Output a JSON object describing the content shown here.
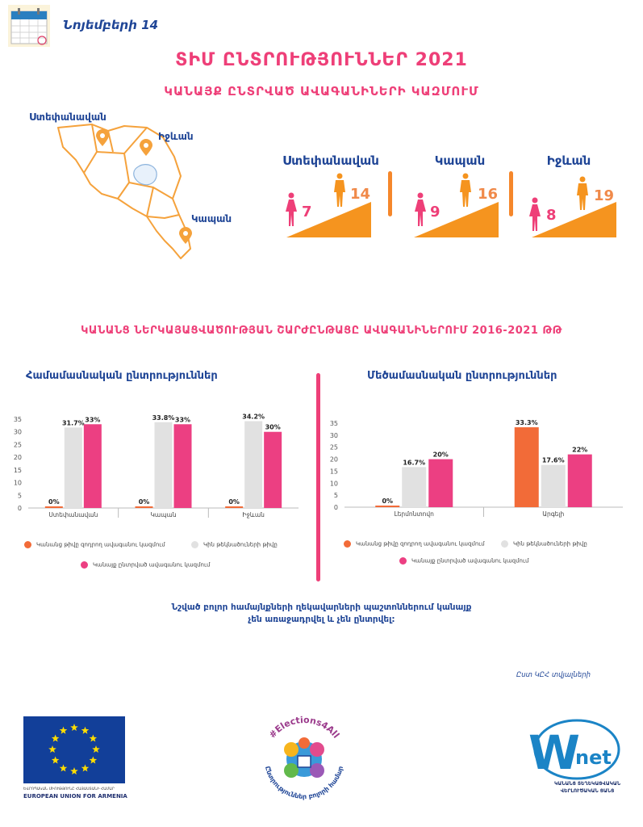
{
  "header": {
    "date": "Նոյեմբերի 14",
    "icon": "calendar-icon"
  },
  "title": "ՏԻՄ ԸՆՏՐՈՒԹՅՈՒՆՆԵՐ 2021",
  "subtitle": "ԿԱՆԱՅՔ ԸՆՏՐՎԱԾ ԱՎԱԳԱՆԻՆԵՐԻ ԿԱԶՄՈՒՄ",
  "map": {
    "labels": [
      "Ստեփանավան",
      "Իջևան",
      "Կապան"
    ]
  },
  "cities": [
    {
      "name": "Ստեփանավան",
      "women": "7",
      "men": "14"
    },
    {
      "name": "Կապան",
      "women": "9",
      "men": "16"
    },
    {
      "name": "Իջևան",
      "women": "8",
      "men": "19"
    }
  ],
  "section2_title": "ԿԱՆԱՆՑ ՆԵՐԿԱՅԱՑՎԱԾՈՒԹՅԱՆ ՇԱՐԺԸՆԹԱՑԸ ԱՎԱԳԱՆԻՆԵՐՈՒՄ 2016-2021 ԹԹ",
  "colors": {
    "series1": "#f26b38",
    "series2": "#e1e1e1",
    "series3": "#ec3f82",
    "accent": "#ee3f78",
    "navy": "#1f4596",
    "orange": "#f5872b"
  },
  "chart_data": [
    {
      "type": "bar",
      "title": "Համամասնական ընտրություններ",
      "categories": [
        "Ստեփանավան",
        "Կապան",
        "Իջևան"
      ],
      "ylim": [
        0,
        35
      ],
      "yticks": [
        0,
        5,
        10,
        15,
        20,
        25,
        30,
        35
      ],
      "legend_position": "bottom",
      "series": [
        {
          "name": "Կանանց թիվը զոդրող ավագանու կազմում",
          "values": [
            0,
            0,
            0
          ],
          "labels": [
            "0%",
            "0%",
            "0%"
          ]
        },
        {
          "name": "Կին թեկնածուների թիվը",
          "values": [
            31.7,
            33.8,
            34.2
          ],
          "labels": [
            "31.7%",
            "33.8%",
            "34.2%"
          ]
        },
        {
          "name": "Կանայք ընտրված ավագանու կազմում",
          "values": [
            33,
            33,
            30
          ],
          "labels": [
            "33%",
            "33%",
            "30%"
          ]
        }
      ]
    },
    {
      "type": "bar",
      "title": "Մեծամասնական ընտրություններ",
      "categories": [
        "Լերմոնտովո",
        "Արգելի"
      ],
      "ylim": [
        0,
        35
      ],
      "yticks": [
        0,
        5,
        10,
        15,
        20,
        25,
        30,
        35
      ],
      "legend_position": "bottom",
      "series": [
        {
          "name": "Կանանց թիվը զոդրող ավագանու կազմում",
          "values": [
            0,
            33.3
          ],
          "labels": [
            "0%",
            "33.3%"
          ]
        },
        {
          "name": "Կին թեկնածուների թիվը",
          "values": [
            16.7,
            17.6
          ],
          "labels": [
            "16.7%",
            "17.6%"
          ]
        },
        {
          "name": "Կանայք ընտրված ավագանու կազմում",
          "values": [
            20,
            22
          ],
          "labels": [
            "20%",
            "22%"
          ]
        }
      ]
    }
  ],
  "note": [
    "Նշված բոլոր համայնքների ղեկավարների պաշտոններում կանայք",
    "չեն առաջադրվել և չեն ընտրվել:"
  ],
  "source": "Ըստ ԿԸՀ տվյալների",
  "footer": {
    "eu_line1": "ԵՎՐՈՊԱԿԱՆ ՄԻՈՒԹՅՈՒՆԸ ՀԱՅԱՍՏԱՆԻ ՀԱՄԱՐ",
    "eu_line2": "EUROPEAN UNION FOR ARMENIA",
    "elections_hashtag": "#Elections4All",
    "elections_slogan": "Ընտրություններ բոլորի համար",
    "wnet_logo": "Wnet",
    "wnet_line1": "ԿԱՆԱՆՑ ՏԵՂԵԿԱՑՎԱԿԱՆ",
    "wnet_line2": "ՎԵՐԼՈՒԾԱԿԱՆ ՑԱՆՑ"
  }
}
